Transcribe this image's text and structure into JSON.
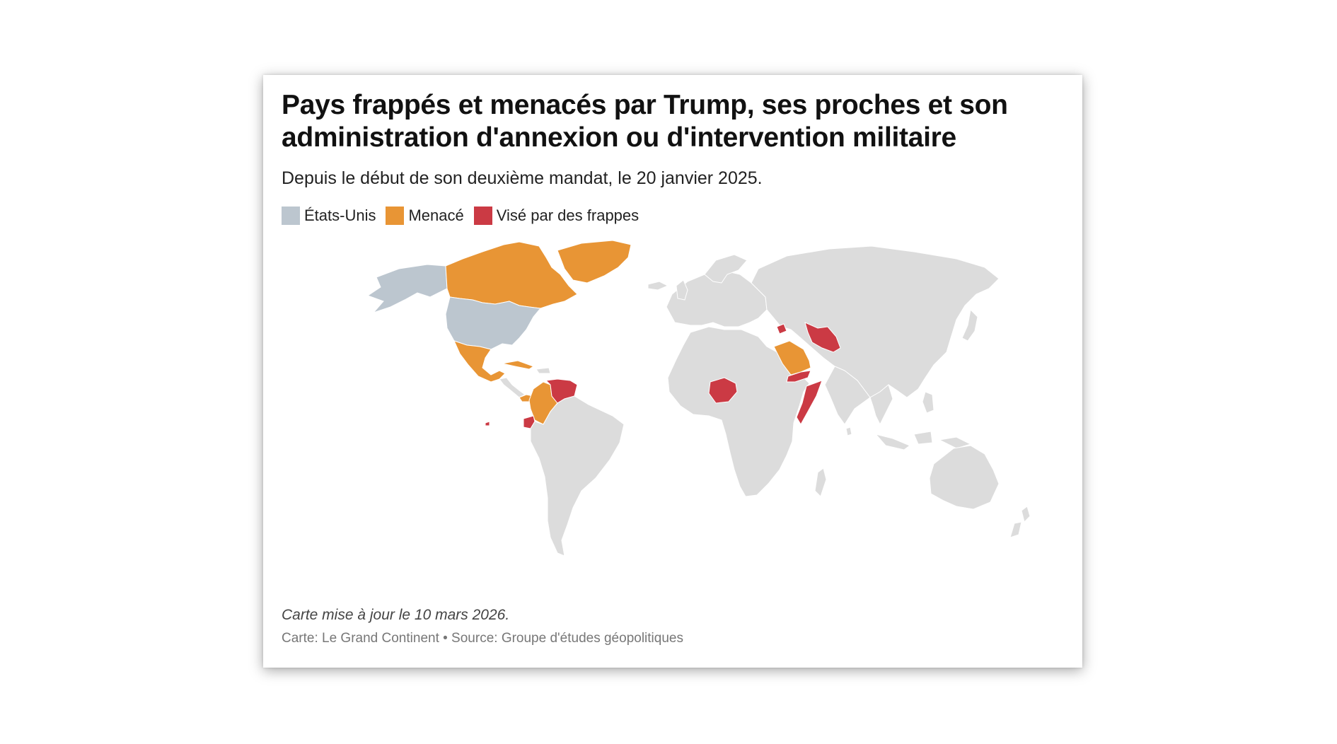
{
  "header": {
    "title": "Pays frappés et menacés par Trump, ses proches et son administration d'annexion ou d'intervention militaire",
    "subtitle": "Depuis le début de son deuxième mandat, le 20 janvier 2025."
  },
  "legend": [
    {
      "label": "États-Unis",
      "color": "#bcc6cf"
    },
    {
      "label": "Menacé",
      "color": "#e89535"
    },
    {
      "label": "Visé par des frappes",
      "color": "#cb3a44"
    }
  ],
  "map": {
    "colors": {
      "default": "#dcdcdc",
      "usa": "#bcc6cf",
      "menace": "#e89535",
      "frappes": "#cb3a44"
    }
  },
  "footer": {
    "updated": "Carte mise à jour le 10 mars 2026.",
    "credits": "Carte: Le Grand Continent • Source: Groupe d'études géopolitiques"
  }
}
